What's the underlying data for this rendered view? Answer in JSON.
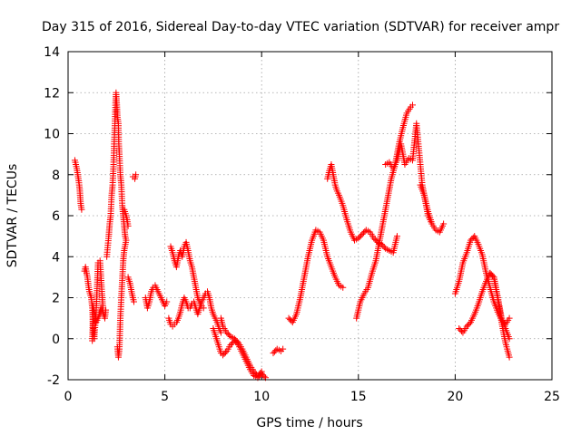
{
  "chart_data": {
    "type": "scatter",
    "title": "Day 315 of 2016, Sidereal Day-to-day VTEC variation (SDTVAR) for receiver ampr",
    "xlabel": "GPS time / hours",
    "ylabel": "SDTVAR / TECUs",
    "xlim": [
      0,
      25
    ],
    "ylim": [
      -2,
      14
    ],
    "xticks": [
      0,
      5,
      10,
      15,
      20,
      25
    ],
    "yticks": [
      -2,
      0,
      2,
      4,
      6,
      8,
      10,
      12,
      14
    ],
    "xtick_labels": [
      "0",
      "5",
      "10",
      "15",
      "20",
      "25"
    ],
    "ytick_labels": [
      "-2",
      "0",
      "2",
      "4",
      "6",
      "8",
      "10",
      "12",
      "14"
    ],
    "grid": true,
    "marker": "+",
    "color": "#ff0000",
    "series": [
      {
        "name": "s1",
        "x": [
          0.35,
          0.45,
          0.5,
          0.55,
          0.6,
          0.65,
          0.7
        ],
        "y": [
          8.7,
          8.3,
          8.0,
          7.7,
          7.3,
          6.6,
          6.3
        ]
      },
      {
        "name": "s2",
        "x": [
          0.85,
          0.9,
          1.0,
          1.05,
          1.1,
          1.2,
          1.25,
          1.3,
          1.35,
          1.45,
          1.55,
          1.65,
          1.75,
          1.8,
          1.55,
          1.45,
          1.3,
          1.25
        ],
        "y": [
          3.3,
          3.5,
          3.0,
          2.6,
          2.3,
          2.0,
          1.5,
          0.5,
          0.0,
          1.3,
          3.7,
          3.8,
          2.2,
          1.5,
          1.0,
          0.8,
          1.6,
          -0.1
        ]
      },
      {
        "name": "s3",
        "x": [
          1.6,
          1.7,
          1.8,
          1.9,
          1.95
        ],
        "y": [
          1.2,
          1.5,
          1.3,
          1.0,
          1.4
        ]
      },
      {
        "name": "s4",
        "x": [
          2.0,
          2.1,
          2.15,
          2.2,
          2.25,
          2.3,
          2.35,
          2.38,
          2.42,
          2.45,
          2.48,
          2.52,
          2.55,
          2.6,
          2.62,
          2.65,
          2.7,
          2.75,
          2.8,
          2.85,
          2.9,
          2.95,
          3.0,
          2.9,
          2.85,
          2.75,
          2.7,
          2.65,
          2.6,
          2.55
        ],
        "y": [
          4.0,
          5.0,
          5.6,
          6.0,
          7.0,
          7.5,
          8.5,
          9.5,
          10.5,
          11.5,
          12.0,
          11.4,
          10.8,
          10.5,
          9.5,
          9.0,
          8.0,
          7.5,
          6.5,
          6.0,
          5.5,
          5.0,
          4.8,
          4.3,
          3.8,
          2.0,
          1.0,
          -0.5,
          -0.9,
          -0.4
        ]
      },
      {
        "name": "s5",
        "x": [
          2.9,
          3.0,
          3.05,
          3.1
        ],
        "y": [
          6.3,
          6.0,
          5.8,
          5.5
        ]
      },
      {
        "name": "s6",
        "x": [
          3.1,
          3.2,
          3.3,
          3.4
        ],
        "y": [
          3.0,
          2.7,
          2.2,
          1.8
        ]
      },
      {
        "name": "s7",
        "x": [
          3.35,
          3.45,
          3.5
        ],
        "y": [
          7.9,
          7.8,
          8.0
        ]
      },
      {
        "name": "s8",
        "x": [
          4.0,
          4.1,
          4.2,
          4.3,
          4.4,
          4.5,
          4.6,
          4.7,
          4.8,
          4.9,
          5.0,
          5.1
        ],
        "y": [
          2.0,
          1.5,
          1.8,
          2.3,
          2.5,
          2.6,
          2.4,
          2.2,
          2.0,
          1.8,
          1.6,
          1.8
        ]
      },
      {
        "name": "s9",
        "x": [
          5.2,
          5.3,
          5.4,
          5.5,
          5.6,
          5.7,
          5.8,
          5.9,
          6.0,
          6.1,
          6.2
        ],
        "y": [
          1.0,
          0.7,
          0.6,
          0.7,
          0.8,
          1.0,
          1.3,
          1.7,
          2.0,
          1.8,
          1.5
        ]
      },
      {
        "name": "s10",
        "x": [
          5.3,
          5.4,
          5.5,
          5.6,
          5.7,
          5.8,
          5.9,
          6.0,
          6.1,
          6.2,
          6.3,
          6.4,
          6.5,
          6.6,
          6.7,
          6.8,
          6.9,
          7.0
        ],
        "y": [
          4.5,
          4.2,
          3.8,
          3.5,
          4.0,
          4.3,
          4.0,
          4.5,
          4.7,
          4.3,
          3.8,
          3.5,
          3.0,
          2.5,
          2.0,
          1.8,
          1.6,
          1.5
        ]
      },
      {
        "name": "s11",
        "x": [
          6.3,
          6.4,
          6.5,
          6.6,
          6.7,
          6.8,
          6.9,
          7.0,
          7.1,
          7.2,
          7.3,
          7.4,
          7.5,
          7.6,
          7.7,
          7.8,
          7.9
        ],
        "y": [
          1.5,
          1.7,
          1.8,
          1.5,
          1.2,
          1.5,
          1.8,
          2.0,
          2.2,
          2.3,
          2.0,
          1.5,
          1.2,
          1.0,
          0.8,
          0.5,
          0.3
        ]
      },
      {
        "name": "s12",
        "x": [
          7.5,
          7.6,
          7.7,
          7.8,
          7.9,
          8.0,
          8.2,
          8.4,
          8.6,
          8.8,
          9.0,
          9.2,
          9.4,
          9.6,
          9.8,
          10.0,
          10.2
        ],
        "y": [
          0.5,
          0.2,
          -0.1,
          -0.4,
          -0.7,
          -0.8,
          -0.6,
          -0.3,
          -0.1,
          -0.3,
          -0.7,
          -1.1,
          -1.5,
          -1.8,
          -1.9,
          -1.7,
          -1.9
        ]
      },
      {
        "name": "s13",
        "x": [
          7.9,
          8.0,
          8.2,
          8.4,
          8.6,
          8.8,
          9.0,
          9.2,
          9.4,
          9.6,
          9.8,
          10.0
        ],
        "y": [
          1.0,
          0.6,
          0.3,
          0.1,
          0.0,
          -0.2,
          -0.5,
          -0.9,
          -1.3,
          -1.6,
          -1.8,
          -1.6
        ]
      },
      {
        "name": "s14",
        "x": [
          10.6,
          10.8,
          11.0,
          11.1
        ],
        "y": [
          -0.7,
          -0.5,
          -0.6,
          -0.5
        ]
      },
      {
        "name": "s15",
        "x": [
          11.4,
          11.6,
          11.8,
          12.0,
          12.2,
          12.4,
          12.6,
          12.8,
          13.0,
          13.2,
          13.4,
          13.6,
          13.8,
          14.0,
          14.2
        ],
        "y": [
          1.0,
          0.8,
          1.2,
          2.0,
          3.0,
          4.0,
          4.8,
          5.3,
          5.2,
          4.8,
          4.0,
          3.5,
          3.0,
          2.6,
          2.5
        ]
      },
      {
        "name": "s16",
        "x": [
          13.4,
          13.5,
          13.6,
          13.7,
          13.8,
          13.9,
          14.0,
          14.2,
          14.4,
          14.6,
          14.8,
          15.0,
          15.2,
          15.4,
          15.6,
          15.8,
          16.0,
          16.2,
          16.4,
          16.6,
          16.8,
          17.0
        ],
        "y": [
          7.8,
          8.2,
          8.5,
          8.0,
          7.5,
          7.2,
          7.0,
          6.5,
          5.8,
          5.2,
          4.8,
          4.9,
          5.1,
          5.3,
          5.2,
          4.9,
          4.7,
          4.6,
          4.4,
          4.3,
          4.2,
          5.0
        ]
      },
      {
        "name": "s17",
        "x": [
          14.9,
          15.1,
          15.3,
          15.5,
          15.7,
          15.9,
          16.1,
          16.3,
          16.5,
          16.7,
          16.9,
          17.1,
          17.3,
          17.5,
          17.7,
          17.8
        ],
        "y": [
          1.0,
          1.8,
          2.2,
          2.5,
          3.2,
          3.8,
          4.8,
          5.8,
          6.8,
          7.8,
          8.5,
          9.5,
          10.3,
          11.0,
          11.3,
          11.4
        ]
      },
      {
        "name": "s18",
        "x": [
          16.4,
          16.6,
          16.8,
          17.0,
          17.2,
          17.4,
          17.6,
          17.8,
          18.0,
          18.1,
          18.2,
          18.3,
          18.4,
          18.6,
          18.8,
          19.0,
          19.2,
          19.4
        ],
        "y": [
          8.5,
          8.6,
          8.3,
          8.7,
          9.5,
          8.5,
          8.8,
          8.7,
          10.5,
          9.5,
          8.5,
          7.5,
          7.0,
          6.0,
          5.6,
          5.3,
          5.2,
          5.6
        ]
      },
      {
        "name": "s19",
        "x": [
          18.2,
          18.4,
          18.6,
          18.8
        ],
        "y": [
          7.5,
          7.0,
          6.2,
          5.6
        ]
      },
      {
        "name": "s20",
        "x": [
          20.0,
          20.2,
          20.4,
          20.6,
          20.8,
          21.0,
          21.2,
          21.4,
          21.6,
          21.8,
          22.0,
          22.2,
          22.4,
          22.6,
          22.8
        ],
        "y": [
          2.2,
          2.8,
          3.7,
          4.2,
          4.8,
          5.0,
          4.6,
          4.1,
          3.2,
          2.5,
          1.8,
          1.3,
          0.9,
          0.7,
          1.0
        ]
      },
      {
        "name": "s21",
        "x": [
          20.2,
          20.4,
          20.6,
          20.8,
          21.0,
          21.2,
          21.4,
          21.6,
          21.8,
          22.0,
          22.2,
          22.4,
          22.6,
          22.8
        ],
        "y": [
          0.5,
          0.3,
          0.6,
          0.8,
          1.2,
          1.7,
          2.3,
          2.8,
          3.2,
          3.0,
          2.0,
          0.8,
          -0.2,
          -0.9
        ]
      },
      {
        "name": "s22",
        "x": [
          21.8,
          22.0,
          22.2,
          22.4,
          22.6,
          22.8
        ],
        "y": [
          3.2,
          3.0,
          2.0,
          1.0,
          0.5,
          0.0
        ]
      }
    ]
  }
}
